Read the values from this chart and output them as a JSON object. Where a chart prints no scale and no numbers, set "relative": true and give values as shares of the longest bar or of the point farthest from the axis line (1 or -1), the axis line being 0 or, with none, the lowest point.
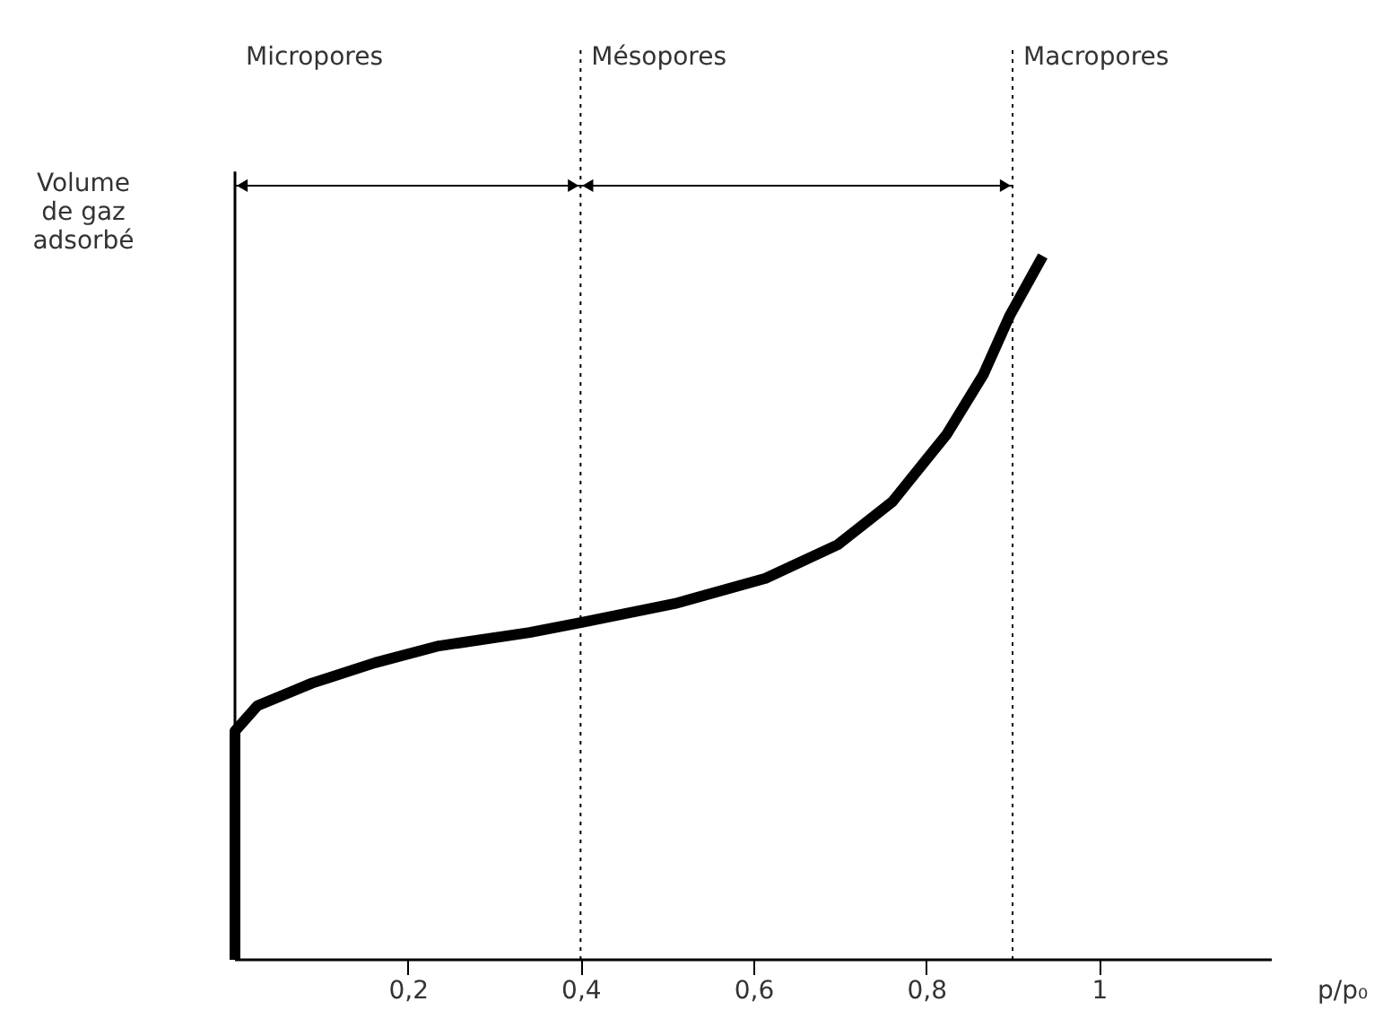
{
  "chart_data": {
    "type": "line",
    "relative": true,
    "xlabel": "p/p₀",
    "ylabel": "Volume de gaz adsorbé",
    "xlim": [
      0,
      1.2
    ],
    "xticks": [
      {
        "value": 0.2,
        "label": "0,2"
      },
      {
        "value": 0.4,
        "label": "0,4"
      },
      {
        "value": 0.6,
        "label": "0,6"
      },
      {
        "value": 0.8,
        "label": "0,8"
      },
      1
    ],
    "series": [
      {
        "color": "#000000",
        "x": [
          0,
          0,
          0.026,
          0.089,
          0.162,
          0.236,
          0.341,
          0.404,
          0.509,
          0.614,
          0.698,
          0.761,
          0.824,
          0.866,
          0.897,
          0.935
        ],
        "values": [
          0,
          0.325,
          0.361,
          0.393,
          0.422,
          0.446,
          0.465,
          0.48,
          0.506,
          0.542,
          0.59,
          0.651,
          0.747,
          0.831,
          0.916,
          1.0
        ]
      }
    ],
    "ref_lines": [
      {
        "axis": "x",
        "value": 0.4,
        "color": "#000000",
        "line_style": "dotted"
      },
      {
        "axis": "x",
        "value": 0.9,
        "color": "#000000",
        "line_style": "dotted"
      }
    ],
    "annotations": [
      "Micropores",
      "Mésopores",
      "Macropores"
    ],
    "grid": false,
    "marker": "none",
    "line_style": "solid"
  }
}
